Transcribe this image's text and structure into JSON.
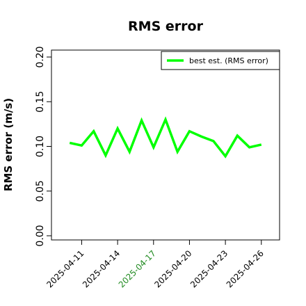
{
  "chart_data": {
    "type": "line",
    "title": "RMS error",
    "xlabel": "",
    "ylabel": "RMS error (m/s)",
    "ylim": [
      0,
      0.21
    ],
    "yticks": [
      "0.00",
      "0.05",
      "0.10",
      "0.15",
      "0.20"
    ],
    "ytick_values": [
      0.0,
      0.05,
      0.1,
      0.15,
      0.2
    ],
    "x_tick_labels": [
      {
        "label": "2025-04-11",
        "color": "#000000"
      },
      {
        "label": "2025-04-14",
        "color": "#000000"
      },
      {
        "label": "2025-04-17",
        "color": "#228B22"
      },
      {
        "label": "2025-04-20",
        "color": "#000000"
      },
      {
        "label": "2025-04-23",
        "color": "#000000"
      },
      {
        "label": "2025-04-26",
        "color": "#000000"
      }
    ],
    "x_range": [
      "2025-04-09",
      "2025-04-27"
    ],
    "grid": false,
    "legend_position": "top-right",
    "series": [
      {
        "name": "best est. (RMS error)",
        "color": "#00ff00",
        "x": [
          "2025-04-10",
          "2025-04-11",
          "2025-04-12",
          "2025-04-13",
          "2025-04-14",
          "2025-04-15",
          "2025-04-16",
          "2025-04-17",
          "2025-04-18",
          "2025-04-19",
          "2025-04-20",
          "2025-04-21",
          "2025-04-22",
          "2025-04-23",
          "2025-04-24",
          "2025-04-25",
          "2025-04-26"
        ],
        "values": [
          0.104,
          0.101,
          0.117,
          0.09,
          0.12,
          0.094,
          0.129,
          0.099,
          0.13,
          0.094,
          0.117,
          0.111,
          0.106,
          0.089,
          0.112,
          0.099,
          0.102
        ]
      }
    ]
  }
}
